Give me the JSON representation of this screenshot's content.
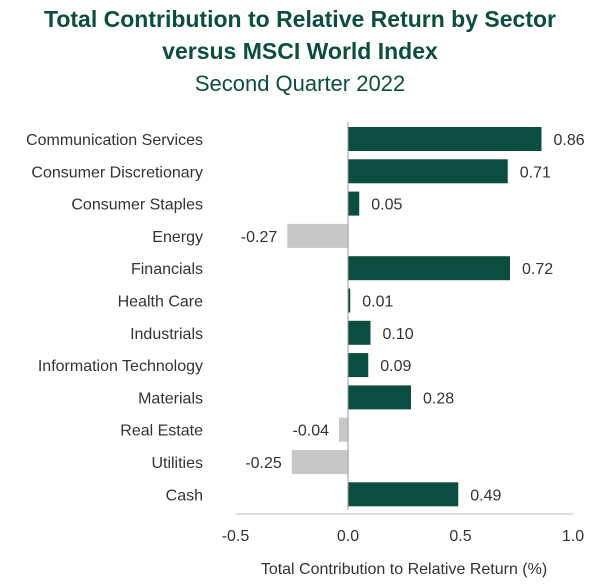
{
  "chart_data": {
    "type": "bar",
    "orientation": "horizontal",
    "title": "Total Contribution to Relative Return by Sector",
    "title_line2": "versus MSCI World Index",
    "subtitle": "Second Quarter 2022",
    "xlabel": "Total Contribution to Relative Return (%)",
    "ylabel": "",
    "xlim": [
      -0.5,
      1.0
    ],
    "xticks": [
      "-0.5",
      "0.0",
      "0.5",
      "1.0"
    ],
    "categories": [
      "Communication Services",
      "Consumer Discretionary",
      "Consumer Staples",
      "Energy",
      "Financials",
      "Health Care",
      "Industrials",
      "Information Technology",
      "Materials",
      "Real Estate",
      "Utilities",
      "Cash"
    ],
    "values": [
      0.86,
      0.71,
      0.05,
      -0.27,
      0.72,
      0.01,
      0.1,
      0.09,
      0.28,
      -0.04,
      -0.25,
      0.49
    ],
    "value_labels": [
      "0.86",
      "0.71",
      "0.05",
      "-0.27",
      "0.72",
      "0.01",
      "0.10",
      "0.09",
      "0.28",
      "-0.04",
      "-0.25",
      "0.49"
    ],
    "grid": false,
    "legend": "none",
    "colors": {
      "positive": "#0b4d40",
      "negative": "#c8c8c8",
      "title": "#0b4d40",
      "text": "#333333"
    }
  }
}
